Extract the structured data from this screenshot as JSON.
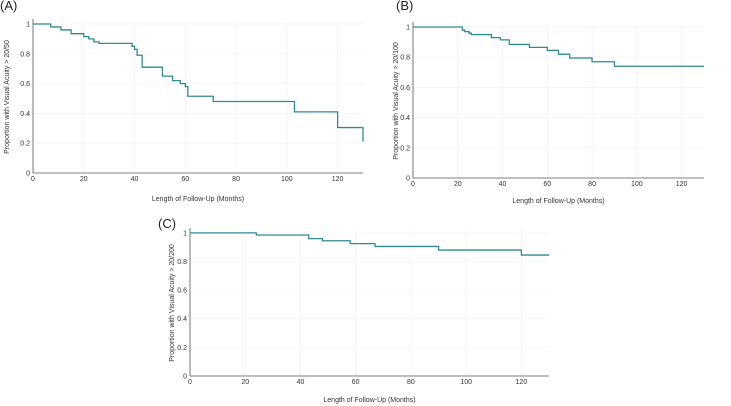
{
  "colors": {
    "curve": "#2e8a93",
    "axis": "#555555",
    "grid": "#eceff3"
  },
  "chart_data": [
    {
      "type": "line",
      "subtype": "step",
      "panel": "(A)",
      "xlabel": "Length of Follow-Up (Months)",
      "ylabel": "Proportion with  Visual Acuity > 20/50",
      "xlim": [
        0,
        130
      ],
      "ylim": [
        0,
        1.02
      ],
      "xticks": [
        0,
        20,
        40,
        60,
        80,
        100,
        120
      ],
      "xticklabels": [
        "0",
        "20",
        "40",
        "60",
        "80",
        "100",
        "120"
      ],
      "yticks": [
        0,
        0.2,
        0.4,
        0.6,
        0.8,
        1
      ],
      "yticklabels": [
        "0",
        "0.2",
        "0.4",
        "0.6",
        "0.8",
        "1"
      ],
      "grid": true,
      "x": [
        0,
        7,
        11,
        15,
        20,
        22,
        24,
        26,
        39,
        40,
        41,
        43,
        51,
        55,
        58,
        60,
        61,
        71,
        103,
        120,
        130
      ],
      "y": [
        1.0,
        0.98,
        0.96,
        0.935,
        0.915,
        0.9,
        0.88,
        0.87,
        0.85,
        0.83,
        0.79,
        0.71,
        0.65,
        0.62,
        0.6,
        0.58,
        0.515,
        0.48,
        0.41,
        0.305,
        0.21
      ]
    },
    {
      "type": "line",
      "subtype": "step",
      "panel": "(B)",
      "xlabel": "Length of Follow-Up (Months)",
      "ylabel": "Proportion with  Visual Acuity > 20/100",
      "xlim": [
        0,
        130
      ],
      "ylim": [
        0,
        1.02
      ],
      "xticks": [
        0,
        20,
        40,
        60,
        80,
        100,
        120
      ],
      "xticklabels": [
        "0",
        "20",
        "40",
        "60",
        "80",
        "100",
        "120"
      ],
      "yticks": [
        0,
        0.2,
        0.4,
        0.6,
        0.8,
        1
      ],
      "yticklabels": [
        "0",
        "0.2",
        "0.4",
        "0.6",
        "0.8",
        "1"
      ],
      "grid": true,
      "x": [
        0,
        22,
        23,
        25,
        26,
        35,
        39,
        43,
        52,
        60,
        65,
        70,
        80,
        90,
        130
      ],
      "y": [
        1.0,
        0.98,
        0.97,
        0.96,
        0.95,
        0.93,
        0.915,
        0.885,
        0.865,
        0.845,
        0.82,
        0.795,
        0.77,
        0.74,
        0.74
      ]
    },
    {
      "type": "line",
      "subtype": "step",
      "panel": "(C)",
      "xlabel": "Length of Follow-Up (Months)",
      "ylabel": "Proportion with  Visual Acuity > 20/200",
      "xlim": [
        0,
        130
      ],
      "ylim": [
        0,
        1.02
      ],
      "xticks": [
        0,
        20,
        40,
        60,
        80,
        100,
        120
      ],
      "xticklabels": [
        "0",
        "20",
        "40",
        "60",
        "80",
        "100",
        "120"
      ],
      "yticks": [
        0,
        0.2,
        0.4,
        0.6,
        0.8,
        1
      ],
      "yticklabels": [
        "0",
        "0.2",
        "0.4",
        "0.6",
        "0.8",
        "1"
      ],
      "grid": true,
      "x": [
        0,
        24,
        43,
        48,
        58,
        67,
        90,
        120,
        130
      ],
      "y": [
        1.0,
        0.985,
        0.96,
        0.945,
        0.925,
        0.905,
        0.88,
        0.845,
        0.845
      ]
    }
  ]
}
